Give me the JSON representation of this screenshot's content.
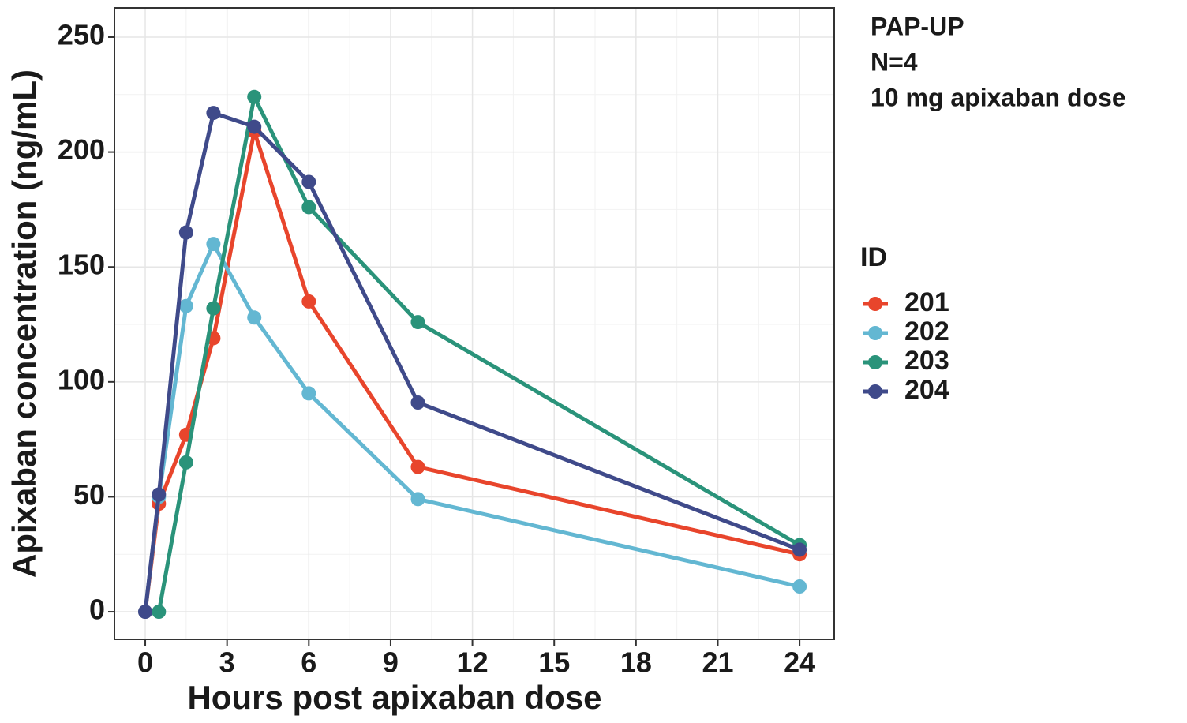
{
  "chart_data": {
    "type": "line",
    "annotation": [
      "PAP-UP",
      "N=4",
      "10 mg apixaban dose"
    ],
    "xlabel": "Hours post apixaban dose",
    "ylabel": "Apixaban concentration (ng/mL)",
    "legend_title": "ID",
    "xlim": [
      -1.13,
      25.27
    ],
    "xticks": [
      0,
      3,
      6,
      9,
      12,
      15,
      18,
      21,
      24
    ],
    "ylim": [
      -12,
      262.7
    ],
    "yticks": [
      0,
      50,
      100,
      150,
      200,
      250
    ],
    "grid": true,
    "series": [
      {
        "name": "201",
        "color": "#e8452c",
        "x": [
          0,
          0.5,
          1.5,
          2.5,
          4,
          6,
          10,
          24
        ],
        "values": [
          0,
          47,
          77,
          119,
          209,
          135,
          63,
          25
        ]
      },
      {
        "name": "202",
        "color": "#63b7d2",
        "x": [
          0,
          0.5,
          1.5,
          2.5,
          4,
          6,
          10,
          24
        ],
        "values": [
          0,
          50,
          133,
          160,
          128,
          95,
          49,
          11
        ]
      },
      {
        "name": "203",
        "color": "#2a937a",
        "x": [
          0.5,
          1.5,
          2.5,
          4,
          6,
          10,
          24
        ],
        "values": [
          0,
          65,
          132,
          224,
          176,
          126,
          29
        ]
      },
      {
        "name": "204",
        "color": "#3f4a8a",
        "x": [
          0,
          0.5,
          1.5,
          2.5,
          4,
          6,
          10,
          24
        ],
        "values": [
          0,
          51,
          165,
          217,
          211,
          187,
          91,
          27
        ]
      }
    ]
  }
}
